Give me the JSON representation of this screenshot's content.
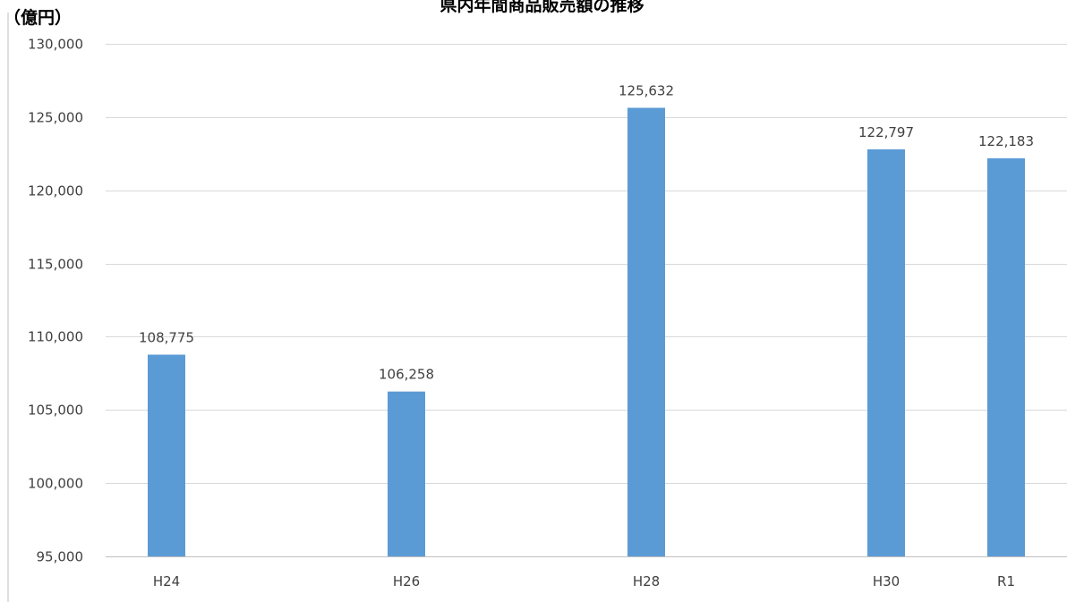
{
  "chart_data": {
    "type": "bar",
    "title": "県内年間商品販売額の推移",
    "ylabel": "（億円）",
    "xlabel": "",
    "categories": [
      "H24",
      "H26",
      "H28",
      "H30",
      "R1"
    ],
    "x_positions": [
      24,
      26,
      28,
      30,
      31
    ],
    "values": [
      108775,
      106258,
      125632,
      122797,
      122183
    ],
    "data_labels": [
      "108,775",
      "106,258",
      "125,632",
      "122,797",
      "122,183"
    ],
    "ylim": [
      95000,
      130000
    ],
    "yticks": [
      95000,
      100000,
      105000,
      110000,
      115000,
      120000,
      125000,
      130000
    ],
    "ytick_labels": [
      "95,000",
      "100,000",
      "105,000",
      "110,000",
      "115,000",
      "120,000",
      "125,000",
      "130,000"
    ],
    "grid": true,
    "bar_color": "#5B9BD5",
    "grid_color": "#D9D9D9",
    "axis_color": "#BFBFBF",
    "text_color": "#404040"
  }
}
